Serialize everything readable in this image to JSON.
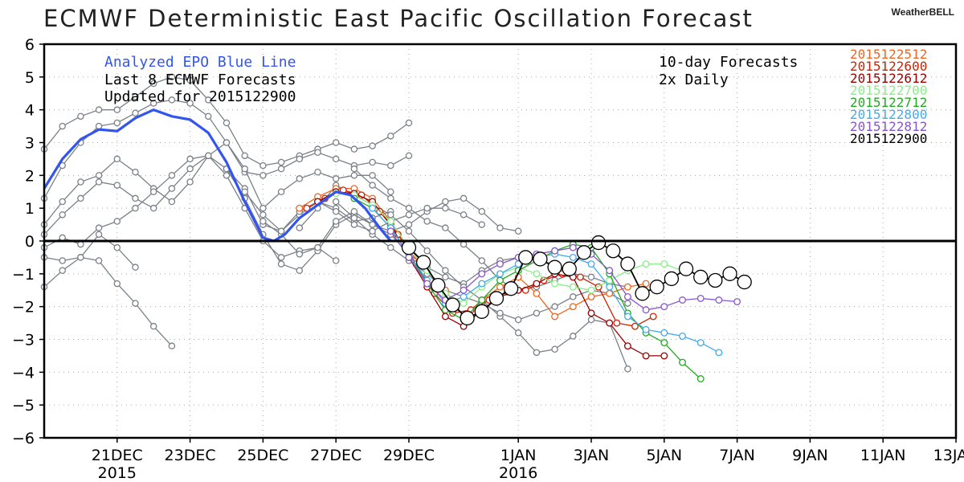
{
  "title": "ECMWF Deterministic East Pacific Oscillation Forecast",
  "brand": "WeatherBELL",
  "notes": {
    "analyzed": "Analyzed EPO Blue Line",
    "last8": "Last 8 ECMWF Forecasts",
    "updated": "Updated for 2015122900",
    "ten_day": "10-day Forecasts",
    "daily": "2x Daily"
  },
  "colors": {
    "analyzed": "#3355ee",
    "gray": "#7a8088",
    "zero_line": "#000000"
  },
  "chart_data": {
    "type": "line",
    "title": "ECMWF Deterministic East Pacific Oscillation Forecast",
    "xlabel": "",
    "ylabel": "",
    "ylim": [
      -6,
      6
    ],
    "xlim": [
      19.0,
      44.0
    ],
    "grid": true,
    "x_ticks": [
      {
        "x": 21,
        "label": "21DEC",
        "sub": "2015"
      },
      {
        "x": 23,
        "label": "23DEC",
        "sub": ""
      },
      {
        "x": 25,
        "label": "25DEC",
        "sub": ""
      },
      {
        "x": 27,
        "label": "27DEC",
        "sub": ""
      },
      {
        "x": 29,
        "label": "29DEC",
        "sub": ""
      },
      {
        "x": 32,
        "label": "1JAN",
        "sub": "2016"
      },
      {
        "x": 34,
        "label": "3JAN",
        "sub": ""
      },
      {
        "x": 36,
        "label": "5JAN",
        "sub": ""
      },
      {
        "x": 38,
        "label": "7JAN",
        "sub": ""
      },
      {
        "x": 40,
        "label": "9JAN",
        "sub": ""
      },
      {
        "x": 42,
        "label": "11JAN",
        "sub": ""
      },
      {
        "x": 44,
        "label": "13JAN",
        "sub": ""
      }
    ],
    "y_ticks": [
      6,
      5,
      4,
      3,
      2,
      1,
      0,
      -1,
      -2,
      -3,
      -4,
      -5,
      -6
    ],
    "analyzed": {
      "name": "Analyzed EPO Blue Line",
      "color": "#3355ee",
      "x": [
        19.0,
        19.5,
        20.0,
        20.5,
        21.0,
        21.5,
        22.0,
        22.5,
        23.0,
        23.5,
        24.0,
        24.5,
        25.0,
        25.3,
        25.6,
        26.0,
        26.5,
        27.0,
        27.4,
        27.8,
        28.2,
        28.5
      ],
      "y": [
        1.6,
        2.5,
        3.1,
        3.4,
        3.35,
        3.75,
        4.0,
        3.8,
        3.7,
        3.3,
        2.4,
        1.2,
        0.1,
        0.0,
        0.2,
        0.7,
        1.1,
        1.5,
        1.4,
        1.0,
        0.4,
        0.0
      ]
    },
    "series": [
      {
        "name": "2015122512",
        "color": "#ee6622",
        "x": [
          26.0,
          26.5,
          27.0,
          27.5,
          28.0,
          28.5,
          29.0,
          29.5,
          30.0,
          30.5,
          31.0,
          31.5,
          32.0,
          32.5,
          33.0,
          33.5,
          34.0,
          34.5,
          35.0,
          35.5
        ],
        "y": [
          1.0,
          1.35,
          1.6,
          1.6,
          1.3,
          0.6,
          -0.3,
          -0.9,
          -1.5,
          -2.3,
          -1.8,
          -1.4,
          -1.1,
          -1.6,
          -2.3,
          -2.0,
          -1.7,
          -1.6,
          -1.4,
          -1.3
        ]
      },
      {
        "name": "2015122600",
        "color": "#cc2200",
        "x": [
          26.2,
          26.7,
          27.2,
          27.7,
          28.2,
          28.7,
          29.2,
          29.7,
          30.2,
          30.7,
          31.2,
          31.7,
          32.2,
          32.7,
          33.2,
          33.7,
          34.2,
          34.7,
          35.2,
          35.7
        ],
        "y": [
          1.0,
          1.3,
          1.55,
          1.4,
          0.9,
          0.2,
          -0.7,
          -1.6,
          -2.2,
          -2.1,
          -1.8,
          -1.55,
          -1.5,
          -1.2,
          -1.0,
          -1.1,
          -1.4,
          -2.5,
          -2.6,
          -2.3
        ]
      },
      {
        "name": "2015122612",
        "color": "#990000",
        "x": [
          26.5,
          27.0,
          27.5,
          28.0,
          28.5,
          29.0,
          29.5,
          30.0,
          30.5,
          31.0,
          31.5,
          32.0,
          32.5,
          33.0,
          33.5,
          34.0,
          34.5,
          35.0,
          35.5,
          36.0
        ],
        "y": [
          1.2,
          1.5,
          1.45,
          1.2,
          0.5,
          -0.5,
          -1.4,
          -2.3,
          -2.6,
          -2.1,
          -1.7,
          -1.5,
          -1.3,
          -1.0,
          -1.1,
          -2.2,
          -2.5,
          -3.2,
          -3.5,
          -3.5
        ]
      },
      {
        "name": "2015122700",
        "color": "#88ee88",
        "x": [
          27.0,
          27.5,
          28.0,
          28.5,
          29.0,
          29.5,
          30.0,
          30.5,
          31.0,
          31.5,
          32.0,
          32.5,
          33.0,
          33.5,
          34.0,
          34.5,
          35.0,
          35.5,
          36.0,
          36.5
        ],
        "y": [
          1.45,
          1.4,
          1.1,
          0.6,
          -0.2,
          -0.9,
          -1.6,
          -1.9,
          -1.4,
          -1.0,
          -0.8,
          -1.0,
          -1.3,
          -1.4,
          -1.5,
          -1.2,
          -0.9,
          -0.7,
          -0.7,
          -0.9
        ]
      },
      {
        "name": "2015122712",
        "color": "#22aa22",
        "x": [
          27.5,
          28.0,
          28.5,
          29.0,
          29.5,
          30.0,
          30.5,
          31.0,
          31.5,
          32.0,
          32.5,
          33.0,
          33.5,
          34.0,
          34.5,
          35.0,
          35.5,
          36.0,
          36.5,
          37.0
        ],
        "y": [
          1.3,
          1.0,
          0.4,
          -0.4,
          -1.3,
          -2.1,
          -2.4,
          -1.8,
          -1.2,
          -0.9,
          -0.6,
          -0.3,
          -0.1,
          -0.2,
          -1.0,
          -2.2,
          -2.8,
          -3.1,
          -3.7,
          -4.2
        ]
      },
      {
        "name": "2015122800",
        "color": "#44aaee",
        "x": [
          28.0,
          28.5,
          29.0,
          29.5,
          30.0,
          30.5,
          31.0,
          31.5,
          32.0,
          32.5,
          33.0,
          33.5,
          34.0,
          34.5,
          35.0,
          35.5,
          36.0,
          36.5,
          37.0,
          37.5
        ],
        "y": [
          1.0,
          0.4,
          -0.4,
          -1.2,
          -1.9,
          -1.7,
          -1.3,
          -1.0,
          -0.7,
          -0.5,
          -0.4,
          -0.5,
          -0.7,
          -1.4,
          -2.3,
          -2.7,
          -2.8,
          -2.9,
          -3.1,
          -3.4
        ]
      },
      {
        "name": "2015122812",
        "color": "#8855cc",
        "x": [
          28.5,
          29.0,
          29.5,
          30.0,
          30.5,
          31.0,
          31.5,
          32.0,
          32.5,
          33.0,
          33.5,
          34.0,
          34.5,
          35.0,
          35.5,
          36.0,
          36.5,
          37.0,
          37.5,
          38.0
        ],
        "y": [
          0.3,
          -0.5,
          -1.3,
          -1.8,
          -1.5,
          -1.0,
          -0.7,
          -0.5,
          -0.4,
          -0.3,
          -0.2,
          -0.4,
          -0.9,
          -1.7,
          -2.1,
          -2.0,
          -1.8,
          -1.75,
          -1.8,
          -1.85
        ]
      },
      {
        "name": "2015122900",
        "color": "#000000",
        "x": [
          29.0,
          29.4,
          29.8,
          30.2,
          30.6,
          31.0,
          31.4,
          31.8,
          32.2,
          32.6,
          33.0,
          33.4,
          33.8,
          34.2,
          34.6,
          35.0,
          35.4,
          35.8,
          36.2,
          36.6,
          37.0,
          37.4,
          37.8,
          38.2
        ],
        "y": [
          -0.2,
          -0.65,
          -1.35,
          -1.95,
          -2.35,
          -2.15,
          -1.75,
          -1.45,
          -0.5,
          -0.55,
          -0.8,
          -0.85,
          -0.35,
          -0.05,
          -0.3,
          -0.7,
          -1.6,
          -1.4,
          -1.15,
          -0.85,
          -1.1,
          -1.2,
          -1.0,
          -1.25
        ]
      }
    ],
    "gray_runs": [
      {
        "x": [
          19.0,
          19.5,
          20.0,
          20.5,
          21.0,
          21.5,
          22.0,
          22.5,
          23.0,
          23.5,
          24.0,
          24.5,
          25.0,
          25.5,
          26.0,
          26.5,
          27.0,
          27.5,
          28.0,
          28.5,
          29.0
        ],
        "y": [
          2.8,
          3.5,
          3.8,
          4.0,
          4.0,
          4.4,
          4.8,
          5.0,
          4.9,
          4.3,
          3.6,
          2.6,
          2.3,
          2.4,
          2.6,
          2.8,
          3.0,
          2.8,
          2.9,
          3.2,
          3.6
        ]
      },
      {
        "x": [
          19.0,
          19.5,
          20.0,
          20.5,
          21.0,
          21.5,
          22.0,
          22.5,
          23.0,
          23.5,
          24.0,
          24.5,
          25.0,
          25.5,
          26.0,
          26.5,
          27.0,
          27.5,
          28.0,
          28.5,
          29.0
        ],
        "y": [
          1.3,
          2.3,
          3.0,
          3.5,
          3.6,
          3.9,
          4.2,
          4.3,
          4.2,
          3.8,
          3.0,
          2.1,
          2.0,
          2.2,
          2.5,
          2.7,
          2.5,
          2.3,
          2.4,
          2.3,
          2.6
        ]
      },
      {
        "x": [
          19.0,
          19.5,
          20.0,
          20.5,
          21.0,
          21.5,
          22.0,
          22.5,
          23.0,
          23.5,
          24.0,
          24.5,
          25.0,
          25.5,
          26.0,
          26.5,
          27.0,
          27.5,
          28.0,
          28.5
        ],
        "y": [
          0.5,
          1.2,
          1.8,
          2.0,
          2.5,
          2.1,
          1.6,
          1.2,
          1.8,
          2.6,
          3.0,
          2.2,
          1.0,
          1.5,
          1.9,
          2.1,
          1.9,
          2.0,
          2.0,
          1.5
        ]
      },
      {
        "x": [
          19.0,
          19.5,
          20.0,
          20.5,
          21.0,
          21.5,
          22.0,
          22.5,
          23.0,
          23.5,
          24.0,
          24.5,
          25.0,
          25.5,
          26.0,
          26.5,
          27.0,
          27.5,
          28.0,
          28.5
        ],
        "y": [
          0.2,
          0.8,
          1.3,
          1.8,
          1.7,
          1.3,
          1.0,
          1.6,
          2.2,
          2.6,
          2.2,
          1.6,
          0.5,
          0.3,
          0.8,
          1.2,
          1.0,
          0.6,
          0.7,
          0.9
        ]
      },
      {
        "x": [
          19.0,
          19.5,
          20.0,
          20.5,
          21.0,
          21.5,
          22.0,
          22.5,
          23.0,
          23.5,
          24.0,
          24.5,
          25.0,
          25.5,
          26.0,
          26.5,
          27.0
        ],
        "y": [
          -0.2,
          0.1,
          -0.1,
          0.4,
          0.6,
          1.0,
          1.5,
          2.0,
          2.5,
          2.6,
          2.0,
          1.0,
          0.0,
          -0.5,
          -0.3,
          -0.2,
          -0.6
        ]
      },
      {
        "x": [
          19.0,
          19.5,
          20.0,
          20.5,
          21.0,
          21.5,
          22.0,
          22.5
        ],
        "y": [
          -1.4,
          -0.9,
          -0.5,
          -0.6,
          -1.3,
          -1.9,
          -2.6,
          -3.2
        ]
      },
      {
        "x": [
          19.0,
          19.5,
          20.0,
          20.5,
          21.0,
          21.5
        ],
        "y": [
          -0.5,
          -0.6,
          -0.5,
          0.2,
          -0.2,
          -0.8
        ]
      },
      {
        "x": [
          24.0,
          24.5,
          25.0,
          25.5,
          26.0,
          26.5,
          27.0,
          27.5,
          28.0,
          28.5,
          29.0,
          29.5,
          30.0,
          30.5,
          31.0,
          31.5,
          32.0
        ],
        "y": [
          2.2,
          1.3,
          0.2,
          -0.7,
          -0.9,
          -0.3,
          0.5,
          0.8,
          0.5,
          0.3,
          0.5,
          0.9,
          1.2,
          1.3,
          0.9,
          0.4,
          0.3
        ]
      },
      {
        "x": [
          25.0,
          25.5,
          26.0,
          26.5,
          27.0,
          27.5,
          28.0,
          28.5,
          29.0,
          29.5,
          30.0,
          30.5,
          31.0,
          31.5,
          32.0,
          32.5,
          33.0
        ],
        "y": [
          0.6,
          0.2,
          -0.4,
          -0.2,
          0.6,
          0.9,
          0.5,
          0.2,
          -0.4,
          -0.8,
          -1.1,
          -1.3,
          -0.9,
          -0.6,
          -0.5,
          -0.6,
          -0.7
        ]
      },
      {
        "x": [
          26.0,
          26.5,
          27.0,
          27.5,
          28.0,
          28.5,
          29.0,
          29.5,
          30.0,
          30.5,
          31.0,
          31.5,
          32.0,
          32.5,
          33.0,
          33.5,
          34.0,
          34.5,
          35.0
        ],
        "y": [
          0.4,
          1.0,
          1.7,
          1.4,
          1.1,
          0.8,
          0.3,
          -0.3,
          -0.9,
          -1.4,
          -1.8,
          -2.3,
          -2.8,
          -3.4,
          -3.3,
          -2.9,
          -2.4,
          -2.5,
          -3.9
        ]
      },
      {
        "x": [
          27.0,
          27.5,
          28.0,
          28.5,
          29.0,
          29.5,
          30.0,
          30.5,
          31.0,
          31.5,
          32.0,
          32.5,
          33.0,
          33.5,
          34.0,
          34.5,
          35.0
        ],
        "y": [
          1.2,
          0.7,
          0.2,
          -0.2,
          -0.6,
          -1.0,
          -1.5,
          -1.7,
          -1.9,
          -2.2,
          -2.4,
          -2.2,
          -2.0,
          -1.7,
          -1.5,
          -1.6,
          -1.9
        ]
      },
      {
        "x": [
          27.5,
          28.0,
          28.5,
          29.0,
          29.5,
          30.0,
          30.5,
          31.0,
          31.5,
          32.0,
          32.5,
          33.0,
          33.5,
          34.0,
          34.5,
          35.0
        ],
        "y": [
          2.2,
          1.7,
          1.3,
          1.0,
          0.6,
          0.4,
          -0.1,
          -0.6,
          -1.2,
          -1.5,
          -1.4,
          -1.2,
          -1.0,
          -1.1,
          -1.3,
          -1.4
        ]
      },
      {
        "x": [
          24.5,
          25.0,
          25.5,
          26.0,
          26.5,
          27.0,
          27.5,
          28.0,
          28.5,
          29.0,
          29.5,
          30.0,
          30.5,
          31.0
        ],
        "y": [
          1.5,
          0.8,
          0.3,
          0.9,
          1.2,
          0.9,
          0.5,
          0.3,
          0.6,
          0.8,
          1.0,
          1.0,
          0.8,
          0.5
        ]
      }
    ]
  }
}
